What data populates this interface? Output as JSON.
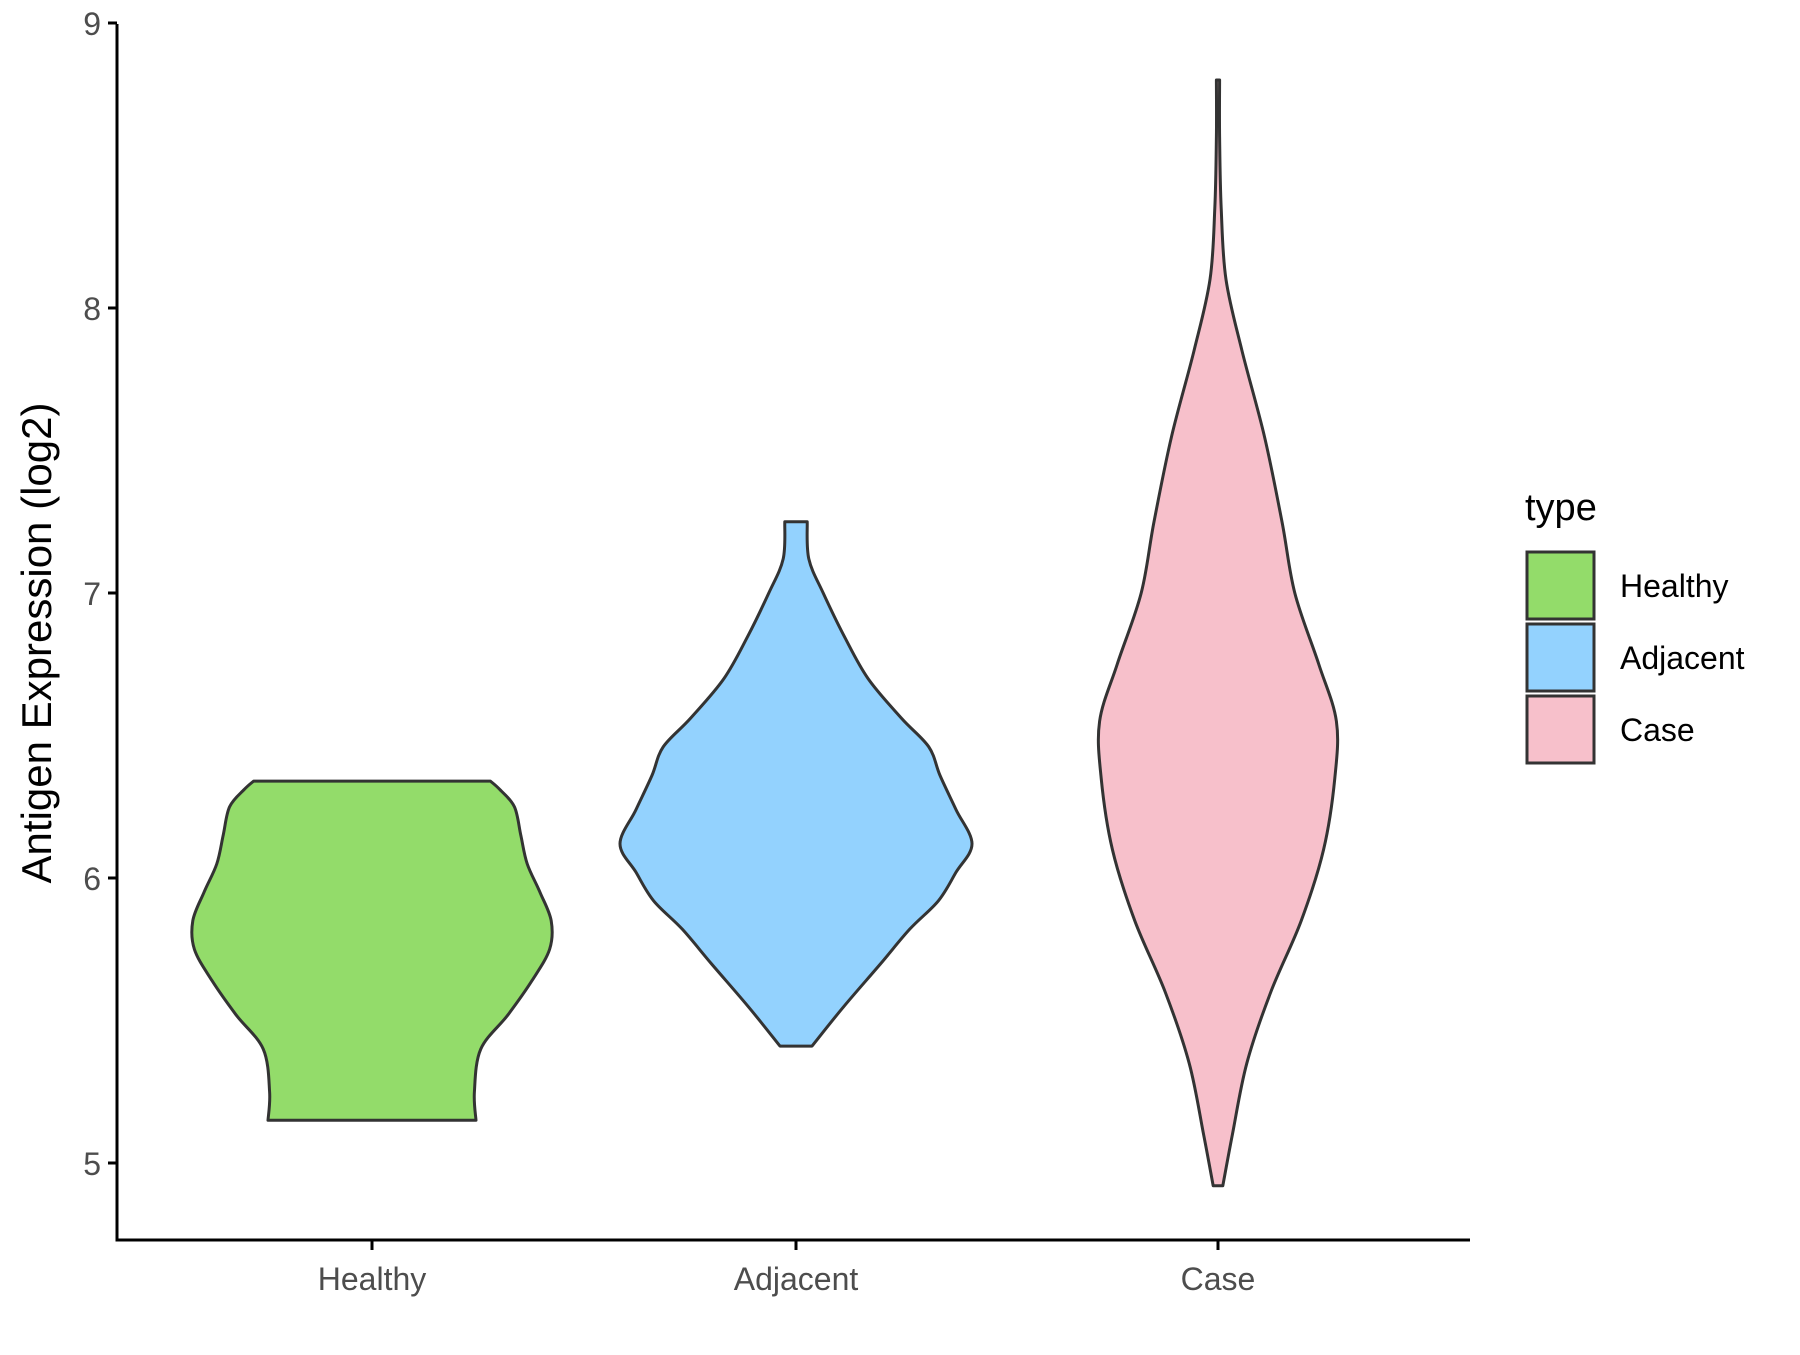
{
  "chart_data": {
    "type": "violin",
    "ylabel": "Antigen Expression (log2)",
    "xlabel": "",
    "ylim": [
      4.7,
      9.0
    ],
    "yticks": [
      5,
      6,
      7,
      8,
      9
    ],
    "categories": [
      "Healthy",
      "Adjacent",
      "Case"
    ],
    "legend": {
      "title": "type",
      "position": "right"
    },
    "grid": false,
    "series": [
      {
        "name": "Healthy",
        "color": "#93dc6a",
        "min": 5.15,
        "max": 6.34,
        "profile": [
          [
            5.15,
            0.65
          ],
          [
            5.25,
            0.64
          ],
          [
            5.4,
            0.68
          ],
          [
            5.52,
            0.85
          ],
          [
            5.64,
            1.0
          ],
          [
            5.75,
            1.11
          ],
          [
            5.85,
            1.12
          ],
          [
            5.95,
            1.05
          ],
          [
            6.05,
            0.97
          ],
          [
            6.15,
            0.93
          ],
          [
            6.25,
            0.89
          ],
          [
            6.31,
            0.8
          ],
          [
            6.34,
            0.74
          ]
        ]
      },
      {
        "name": "Adjacent",
        "color": "#93d2fe",
        "min": 5.41,
        "max": 7.25,
        "profile": [
          [
            5.41,
            0.1
          ],
          [
            5.55,
            0.3
          ],
          [
            5.7,
            0.53
          ],
          [
            5.82,
            0.71
          ],
          [
            5.92,
            0.89
          ],
          [
            6.02,
            1.0
          ],
          [
            6.12,
            1.1
          ],
          [
            6.24,
            1.0
          ],
          [
            6.36,
            0.9
          ],
          [
            6.46,
            0.83
          ],
          [
            6.56,
            0.66
          ],
          [
            6.7,
            0.45
          ],
          [
            6.85,
            0.3
          ],
          [
            7.0,
            0.17
          ],
          [
            7.12,
            0.08
          ],
          [
            7.25,
            0.07
          ]
        ]
      },
      {
        "name": "Case",
        "color": "#f7c0cb",
        "min": 4.92,
        "max": 8.8,
        "profile": [
          [
            4.92,
            0.03
          ],
          [
            5.1,
            0.09
          ],
          [
            5.35,
            0.18
          ],
          [
            5.6,
            0.33
          ],
          [
            5.85,
            0.52
          ],
          [
            6.1,
            0.66
          ],
          [
            6.35,
            0.73
          ],
          [
            6.55,
            0.74
          ],
          [
            6.75,
            0.63
          ],
          [
            7.0,
            0.48
          ],
          [
            7.25,
            0.4
          ],
          [
            7.55,
            0.29
          ],
          [
            7.85,
            0.15
          ],
          [
            8.1,
            0.05
          ],
          [
            8.35,
            0.02
          ],
          [
            8.6,
            0.01
          ],
          [
            8.8,
            0.01
          ]
        ]
      }
    ]
  }
}
